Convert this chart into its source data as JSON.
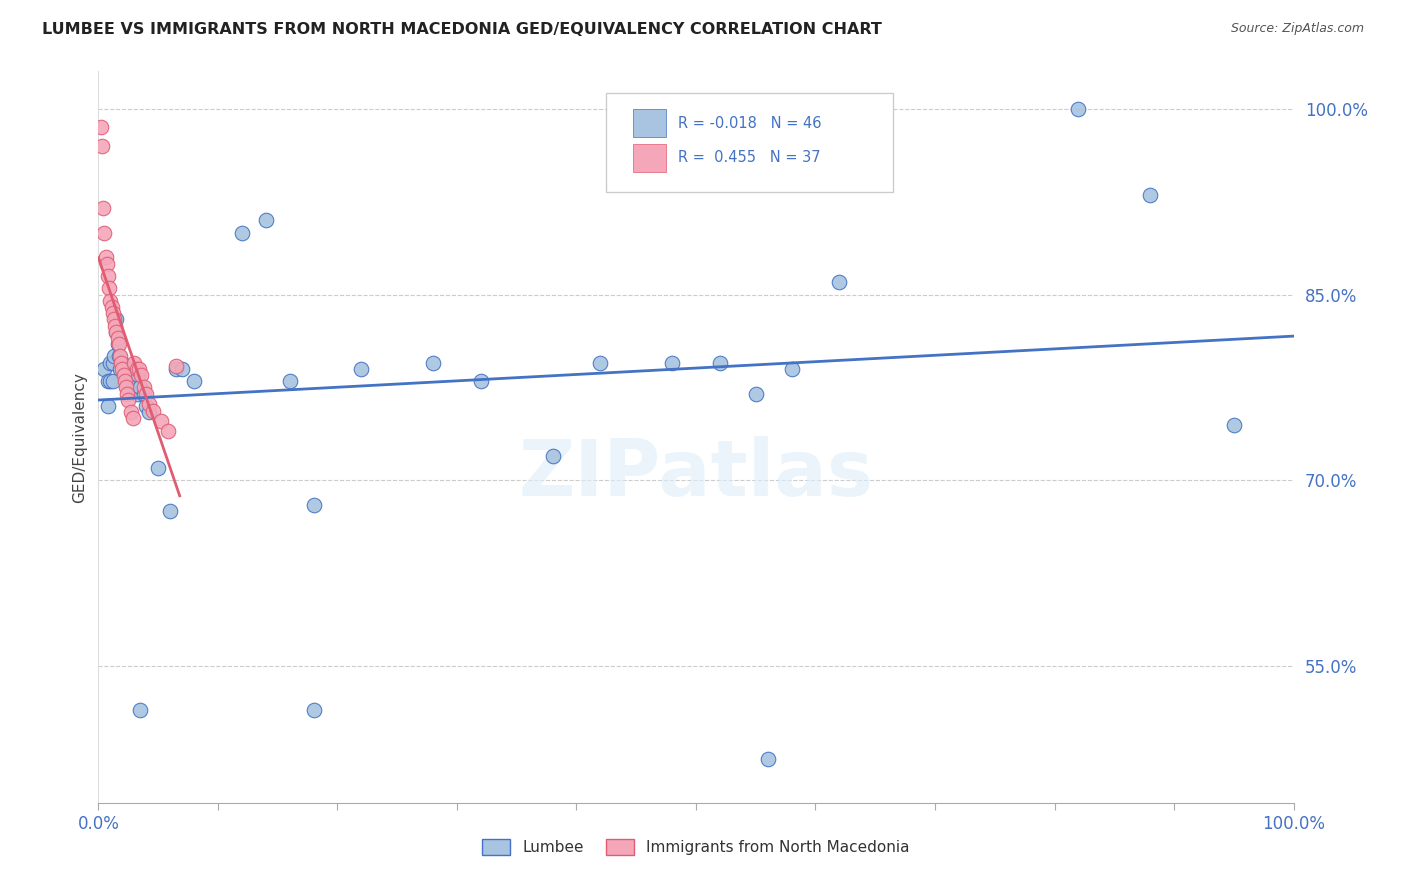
{
  "title": "LUMBEE VS IMMIGRANTS FROM NORTH MACEDONIA GED/EQUIVALENCY CORRELATION CHART",
  "source": "Source: ZipAtlas.com",
  "ylabel": "GED/Equivalency",
  "xlim": [
    0.0,
    1.0
  ],
  "ylim": [
    0.44,
    1.03
  ],
  "yticks": [
    0.55,
    0.7,
    0.85,
    1.0
  ],
  "ytick_labels": [
    "55.0%",
    "70.0%",
    "85.0%",
    "100.0%"
  ],
  "xticks": [
    0.0,
    0.1,
    0.2,
    0.3,
    0.4,
    0.5,
    0.6,
    0.7,
    0.8,
    0.9,
    1.0
  ],
  "color_blue": "#a8c4e0",
  "color_pink": "#f4a7b9",
  "line_color_blue": "#4472c4",
  "line_color_pink": "#e05c72",
  "label_blue": "Lumbee",
  "label_pink": "Immigrants from North Macedonia",
  "watermark": "ZIPatlas",
  "lumbee_x": [
    0.005,
    0.008,
    0.008,
    0.01,
    0.01,
    0.012,
    0.012,
    0.013,
    0.015,
    0.015,
    0.016,
    0.017,
    0.018,
    0.02,
    0.022,
    0.025,
    0.028,
    0.03,
    0.032,
    0.033,
    0.035,
    0.038,
    0.04,
    0.042,
    0.05,
    0.06,
    0.065,
    0.07,
    0.08,
    0.12,
    0.14,
    0.16,
    0.18,
    0.22,
    0.28,
    0.32,
    0.38,
    0.42,
    0.48,
    0.52,
    0.55,
    0.58,
    0.62,
    0.82,
    0.88,
    0.95,
    0.035,
    0.18,
    0.56
  ],
  "lumbee_y": [
    0.79,
    0.76,
    0.78,
    0.78,
    0.795,
    0.78,
    0.795,
    0.8,
    0.82,
    0.83,
    0.81,
    0.8,
    0.79,
    0.795,
    0.785,
    0.79,
    0.78,
    0.775,
    0.77,
    0.785,
    0.775,
    0.77,
    0.76,
    0.755,
    0.71,
    0.675,
    0.79,
    0.79,
    0.78,
    0.9,
    0.91,
    0.78,
    0.68,
    0.79,
    0.795,
    0.78,
    0.72,
    0.795,
    0.795,
    0.795,
    0.77,
    0.79,
    0.86,
    1.0,
    0.93,
    0.745,
    0.515,
    0.515,
    0.475
  ],
  "macedonia_x": [
    0.002,
    0.003,
    0.004,
    0.005,
    0.006,
    0.007,
    0.008,
    0.009,
    0.01,
    0.011,
    0.012,
    0.013,
    0.014,
    0.015,
    0.016,
    0.017,
    0.018,
    0.019,
    0.02,
    0.021,
    0.022,
    0.023,
    0.024,
    0.025,
    0.027,
    0.029,
    0.03,
    0.032,
    0.034,
    0.036,
    0.038,
    0.04,
    0.042,
    0.046,
    0.052,
    0.058,
    0.065
  ],
  "macedonia_y": [
    0.985,
    0.97,
    0.92,
    0.9,
    0.88,
    0.875,
    0.865,
    0.855,
    0.845,
    0.84,
    0.835,
    0.83,
    0.825,
    0.82,
    0.815,
    0.81,
    0.8,
    0.795,
    0.79,
    0.785,
    0.78,
    0.775,
    0.77,
    0.765,
    0.755,
    0.75,
    0.795,
    0.79,
    0.79,
    0.785,
    0.775,
    0.77,
    0.762,
    0.756,
    0.748,
    0.74,
    0.792
  ]
}
